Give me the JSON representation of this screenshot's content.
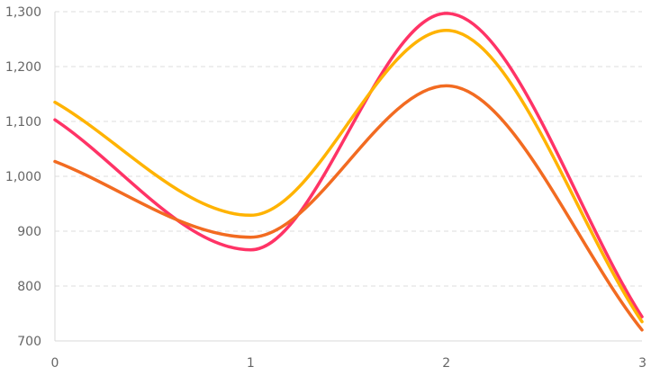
{
  "chart_data": {
    "type": "line",
    "x": [
      0,
      1,
      2,
      3
    ],
    "x_tick_labels": [
      "0",
      "1",
      "2",
      "3"
    ],
    "y_tick_labels": [
      "700",
      "800",
      "900",
      "1,000",
      "1,100",
      "1,200",
      "1,300"
    ],
    "y_ticks": [
      700,
      800,
      900,
      1000,
      1100,
      1200,
      1300
    ],
    "ylim": [
      700,
      1300
    ],
    "xlim": [
      0,
      3
    ],
    "grid": "horizontal dashed",
    "legend": "none",
    "curve": "smooth",
    "series": [
      {
        "color": "#ff3366",
        "values": [
          1103,
          866,
          1297,
          744
        ]
      },
      {
        "color": "#ffb300",
        "values": [
          1135,
          929,
          1266,
          735
        ]
      },
      {
        "color": "#f26b21",
        "values": [
          1027,
          889,
          1165,
          720
        ]
      }
    ]
  }
}
